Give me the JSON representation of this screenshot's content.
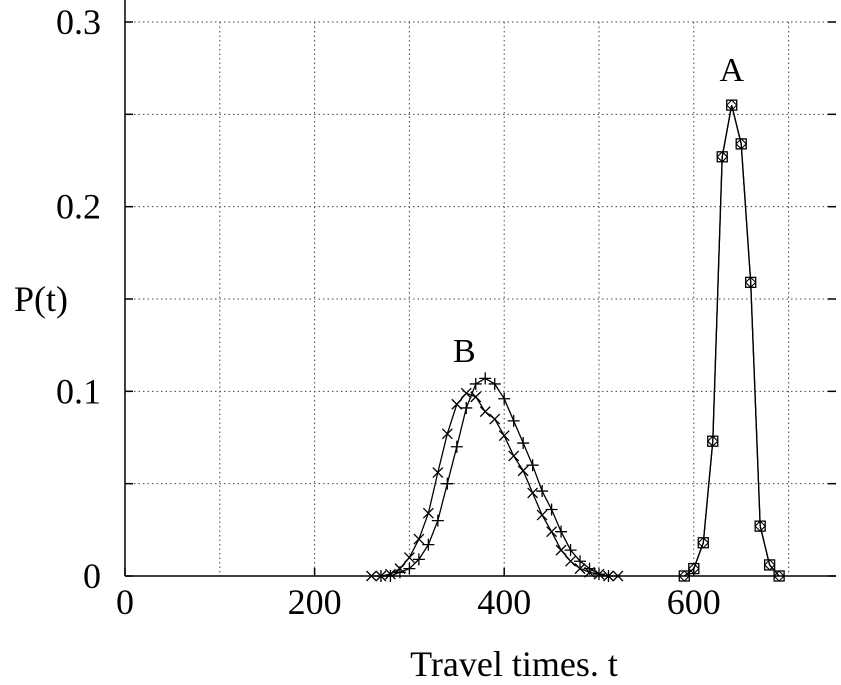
{
  "chart_data": {
    "type": "line",
    "title": "",
    "xlabel": "Travel times. t",
    "ylabel": "P(t)",
    "xlim": [
      0,
      750
    ],
    "ylim": [
      0,
      0.3
    ],
    "xticks": [
      0,
      200,
      400,
      600
    ],
    "xtick_labels": [
      "0",
      "200",
      "400",
      "600"
    ],
    "yticks": [
      0,
      0.05,
      0.1,
      0.15,
      0.2,
      0.25,
      0.3
    ],
    "ytick_labels": [
      "0",
      "",
      "0.1",
      "",
      "0.2",
      "",
      "0.3"
    ],
    "grid": true,
    "legend": "none",
    "annotations": [
      {
        "text": "A",
        "x": 640,
        "y": 0.268
      },
      {
        "text": "B",
        "x": 358,
        "y": 0.116
      }
    ],
    "series": [
      {
        "marker": "x",
        "x": [
          260,
          270,
          280,
          290,
          300,
          310,
          320,
          330,
          340,
          350,
          360,
          370,
          380,
          390,
          400,
          410,
          420,
          430,
          440,
          450,
          460,
          470,
          480,
          490,
          500,
          510,
          520
        ],
        "values": [
          0,
          0,
          0.001,
          0.004,
          0.01,
          0.02,
          0.034,
          0.056,
          0.077,
          0.093,
          0.099,
          0.097,
          0.089,
          0.085,
          0.076,
          0.065,
          0.057,
          0.045,
          0.033,
          0.024,
          0.014,
          0.008,
          0.004,
          0.002,
          0.001,
          0,
          0
        ]
      },
      {
        "marker": "+",
        "x": [
          270,
          280,
          290,
          300,
          310,
          320,
          330,
          340,
          350,
          360,
          370,
          380,
          390,
          400,
          410,
          420,
          430,
          440,
          450,
          460,
          470,
          480,
          490,
          500,
          510
        ],
        "values": [
          0,
          0,
          0.002,
          0.004,
          0.009,
          0.017,
          0.03,
          0.05,
          0.07,
          0.091,
          0.104,
          0.107,
          0.104,
          0.096,
          0.084,
          0.072,
          0.06,
          0.046,
          0.036,
          0.024,
          0.014,
          0.008,
          0.004,
          0.001,
          0
        ]
      },
      {
        "marker": "square",
        "x": [
          590,
          600,
          610,
          620,
          630,
          640,
          650,
          660,
          670,
          680,
          690
        ],
        "values": [
          0,
          0.004,
          0.018,
          0.073,
          0.227,
          0.255,
          0.234,
          0.159,
          0.027,
          0.006,
          0
        ]
      },
      {
        "marker": "diamond",
        "x": [
          590,
          600,
          610,
          620,
          630,
          640,
          650,
          660,
          670,
          680,
          690
        ],
        "values": [
          0,
          0.004,
          0.018,
          0.073,
          0.227,
          0.255,
          0.234,
          0.159,
          0.027,
          0.006,
          0
        ]
      }
    ]
  }
}
